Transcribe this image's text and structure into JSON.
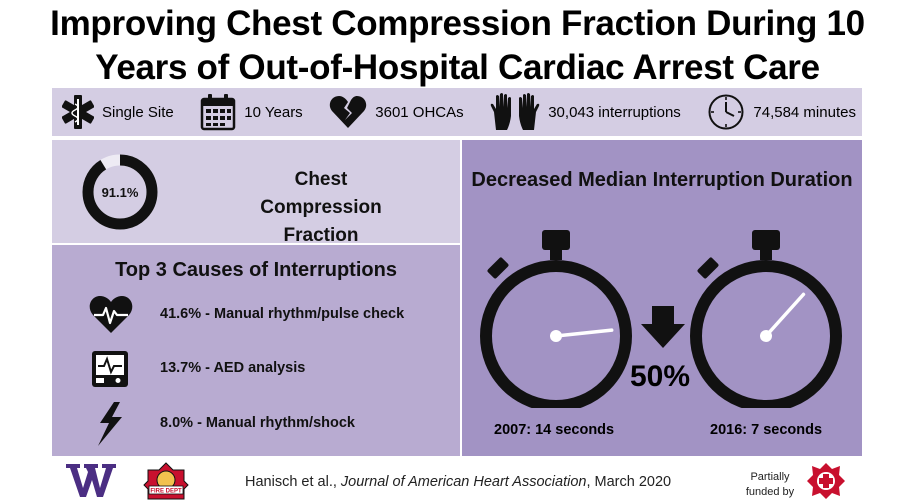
{
  "title": "Improving Chest Compression Fraction During 10 Years of Out-of-Hospital Cardiac Arrest Care",
  "stats": {
    "site": "Single Site",
    "years": "10 Years",
    "ohcas": "3601 OHCAs",
    "interruptions": "30,043 interruptions",
    "minutes": "74,584 minutes"
  },
  "ccf": {
    "value": "91.1%",
    "fraction": 0.911,
    "title": "Chest Compression Fraction"
  },
  "causes": {
    "title": "Top 3 Causes of Interruptions",
    "items": [
      {
        "icon": "heart-pulse-icon",
        "text": "41.6% - Manual rhythm/pulse check"
      },
      {
        "icon": "aed-monitor-icon",
        "text": "13.7% - AED analysis"
      },
      {
        "icon": "lightning-icon",
        "text": "8.0% - Manual rhythm/shock"
      }
    ]
  },
  "median": {
    "title": "Decreased Median Interruption Duration",
    "reduction": "50%",
    "before": {
      "label": "2007: 14 seconds",
      "seconds": 14
    },
    "after": {
      "label": "2016: 7 seconds",
      "seconds": 7
    }
  },
  "footer": {
    "author": "Hanisch et al., ",
    "journal": "Journal of American Heart Association",
    "date": ", March 2020",
    "funded": "Partially funded by",
    "fire_dept_text": "FIRE DEPT"
  },
  "colors": {
    "light_panel": "#d4cde3",
    "mid_panel": "#b8abd1",
    "dark_panel": "#a293c4",
    "uw_purple": "#4b2e83"
  }
}
